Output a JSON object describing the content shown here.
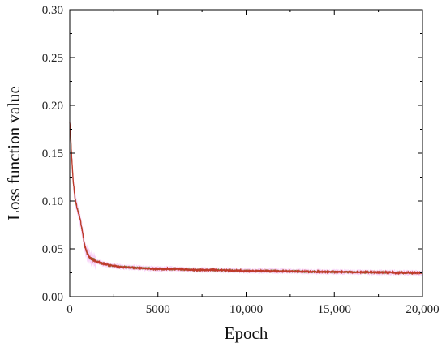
{
  "chart_data": {
    "type": "line",
    "title": "",
    "xlabel": "Epoch",
    "ylabel": "Loss function value",
    "xlim": [
      0,
      20000
    ],
    "ylim": [
      0,
      0.3
    ],
    "x_ticks": [
      0,
      5000,
      10000,
      15000,
      20000
    ],
    "x_tick_labels": [
      "0",
      "5000",
      "10,000",
      "15,000",
      "20,000"
    ],
    "y_ticks": [
      0.0,
      0.05,
      0.1,
      0.15,
      0.2,
      0.25,
      0.3
    ],
    "y_tick_labels": [
      "0.00",
      "0.05",
      "0.10",
      "0.15",
      "0.20",
      "0.25",
      "0.30"
    ],
    "grid": false,
    "legend": "none",
    "colors": {
      "raw": "#ee82ee",
      "smoothed": "#c0392b",
      "smoothed_alt": "#6b7f1f"
    },
    "series": [
      {
        "x": [
          0,
          50,
          100,
          150,
          200,
          300,
          400,
          500,
          600,
          700,
          800,
          900,
          1000,
          1200,
          1500,
          1800,
          2000,
          2500,
          3000,
          4000,
          5000,
          6000,
          7000,
          8000,
          9000,
          10000,
          11000,
          12000,
          13000,
          14000,
          15000,
          16000,
          17000,
          18000,
          19000,
          20000
        ],
        "values": [
          0.182,
          0.17,
          0.15,
          0.135,
          0.12,
          0.103,
          0.094,
          0.087,
          0.08,
          0.07,
          0.058,
          0.05,
          0.045,
          0.04,
          0.037,
          0.035,
          0.034,
          0.032,
          0.031,
          0.03,
          0.029,
          0.029,
          0.028,
          0.028,
          0.0275,
          0.027,
          0.027,
          0.0268,
          0.0265,
          0.026,
          0.026,
          0.0258,
          0.0255,
          0.0255,
          0.025,
          0.025
        ]
      }
    ]
  }
}
